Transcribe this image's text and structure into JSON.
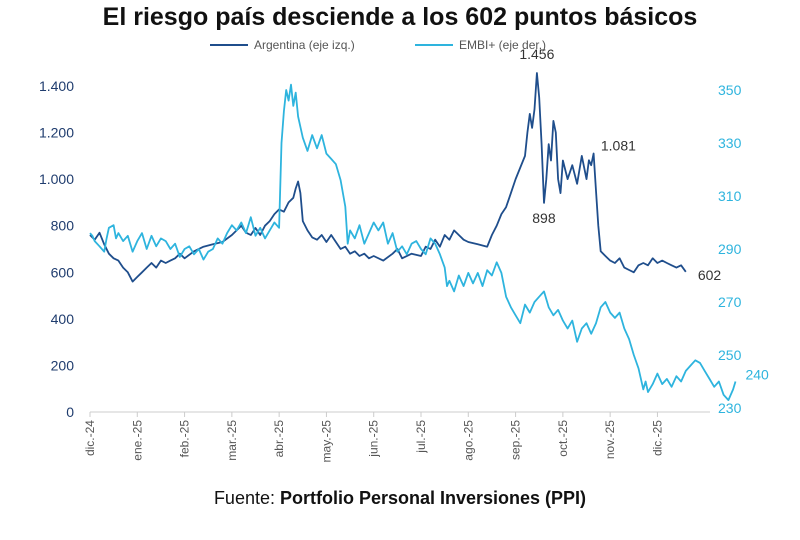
{
  "title": "El riesgo país desciende a los 602 puntos básicos",
  "source": {
    "prefix": "Fuente: ",
    "name": "Portfolio Personal Inversiones (PPI)"
  },
  "colors": {
    "argentina": "#1f4e8c",
    "embi": "#2eb4de",
    "axis": "#cccccc"
  },
  "chart_data": {
    "type": "line",
    "title": "El riesgo país desciende a los 602 puntos básicos",
    "x_ticks": [
      "dic.-24",
      "ene.-25",
      "feb.-25",
      "mar.-25",
      "abr.-25",
      "may.-25",
      "jun.-25",
      "jul.-25",
      "ago.-25",
      "sep.-25",
      "oct.-25",
      "nov.-25",
      "dic.-25"
    ],
    "y_left": {
      "label": "Argentina (eje izq.)",
      "ylim": [
        0,
        1400
      ],
      "ticks": [
        0,
        200,
        400,
        600,
        800,
        1000,
        1200,
        1400
      ],
      "tick_labels": [
        "0",
        "200",
        "400",
        "600",
        "800",
        "1.000",
        "1.200",
        "1.400"
      ]
    },
    "y_right": {
      "label": "EMBI+ (eje der.)",
      "ylim": [
        230,
        350
      ],
      "ticks": [
        230,
        250,
        270,
        290,
        310,
        330,
        350
      ],
      "tick_labels": [
        "230",
        "250",
        "270",
        "290",
        "310",
        "330",
        "350"
      ]
    },
    "series": [
      {
        "name": "Argentina (eje izq.)",
        "axis": "left",
        "points": [
          [
            0,
            760
          ],
          [
            0.1,
            740
          ],
          [
            0.2,
            770
          ],
          [
            0.3,
            720
          ],
          [
            0.4,
            680
          ],
          [
            0.5,
            660
          ],
          [
            0.6,
            650
          ],
          [
            0.7,
            620
          ],
          [
            0.8,
            600
          ],
          [
            0.9,
            560
          ],
          [
            1.0,
            580
          ],
          [
            1.1,
            600
          ],
          [
            1.2,
            620
          ],
          [
            1.3,
            640
          ],
          [
            1.4,
            620
          ],
          [
            1.5,
            650
          ],
          [
            1.6,
            640
          ],
          [
            1.7,
            650
          ],
          [
            1.8,
            660
          ],
          [
            1.9,
            680
          ],
          [
            2.0,
            660
          ],
          [
            2.2,
            690
          ],
          [
            2.4,
            710
          ],
          [
            2.6,
            720
          ],
          [
            2.8,
            730
          ],
          [
            3.0,
            760
          ],
          [
            3.1,
            780
          ],
          [
            3.2,
            800
          ],
          [
            3.3,
            770
          ],
          [
            3.4,
            760
          ],
          [
            3.5,
            790
          ],
          [
            3.6,
            760
          ],
          [
            3.7,
            800
          ],
          [
            3.8,
            820
          ],
          [
            3.9,
            850
          ],
          [
            4.0,
            870
          ],
          [
            4.1,
            860
          ],
          [
            4.2,
            900
          ],
          [
            4.3,
            920
          ],
          [
            4.35,
            960
          ],
          [
            4.4,
            990
          ],
          [
            4.45,
            940
          ],
          [
            4.5,
            820
          ],
          [
            4.6,
            780
          ],
          [
            4.7,
            750
          ],
          [
            4.8,
            740
          ],
          [
            4.9,
            760
          ],
          [
            5.0,
            730
          ],
          [
            5.1,
            760
          ],
          [
            5.2,
            730
          ],
          [
            5.3,
            700
          ],
          [
            5.4,
            710
          ],
          [
            5.5,
            680
          ],
          [
            5.6,
            690
          ],
          [
            5.7,
            670
          ],
          [
            5.8,
            680
          ],
          [
            5.9,
            660
          ],
          [
            6.0,
            670
          ],
          [
            6.2,
            650
          ],
          [
            6.4,
            680
          ],
          [
            6.5,
            700
          ],
          [
            6.6,
            660
          ],
          [
            6.8,
            680
          ],
          [
            7.0,
            670
          ],
          [
            7.1,
            710
          ],
          [
            7.2,
            700
          ],
          [
            7.3,
            740
          ],
          [
            7.4,
            710
          ],
          [
            7.5,
            760
          ],
          [
            7.6,
            740
          ],
          [
            7.7,
            780
          ],
          [
            7.8,
            760
          ],
          [
            7.9,
            740
          ],
          [
            8.0,
            730
          ],
          [
            8.2,
            720
          ],
          [
            8.4,
            710
          ],
          [
            8.5,
            760
          ],
          [
            8.6,
            800
          ],
          [
            8.7,
            850
          ],
          [
            8.8,
            880
          ],
          [
            8.9,
            940
          ],
          [
            9.0,
            1000
          ],
          [
            9.1,
            1050
          ],
          [
            9.2,
            1100
          ],
          [
            9.25,
            1200
          ],
          [
            9.3,
            1280
          ],
          [
            9.35,
            1220
          ],
          [
            9.4,
            1300
          ],
          [
            9.45,
            1456
          ],
          [
            9.5,
            1350
          ],
          [
            9.55,
            1150
          ],
          [
            9.6,
            898
          ],
          [
            9.65,
            1000
          ],
          [
            9.7,
            1150
          ],
          [
            9.75,
            1080
          ],
          [
            9.8,
            1250
          ],
          [
            9.85,
            1200
          ],
          [
            9.9,
            1000
          ],
          [
            9.95,
            940
          ],
          [
            10.0,
            1080
          ],
          [
            10.1,
            1000
          ],
          [
            10.2,
            1060
          ],
          [
            10.3,
            980
          ],
          [
            10.4,
            1100
          ],
          [
            10.5,
            1000
          ],
          [
            10.55,
            1081
          ],
          [
            10.6,
            1060
          ],
          [
            10.65,
            1110
          ],
          [
            10.7,
            950
          ],
          [
            10.75,
            800
          ],
          [
            10.8,
            690
          ],
          [
            10.9,
            670
          ],
          [
            11.0,
            650
          ],
          [
            11.1,
            640
          ],
          [
            11.2,
            660
          ],
          [
            11.3,
            620
          ],
          [
            11.4,
            610
          ],
          [
            11.5,
            600
          ],
          [
            11.6,
            630
          ],
          [
            11.7,
            640
          ],
          [
            11.8,
            630
          ],
          [
            11.9,
            660
          ],
          [
            12.0,
            640
          ],
          [
            12.1,
            650
          ],
          [
            12.2,
            640
          ],
          [
            12.3,
            630
          ],
          [
            12.4,
            620
          ],
          [
            12.5,
            630
          ],
          [
            12.6,
            602
          ]
        ]
      },
      {
        "name": "EMBI+ (eje der.)",
        "axis": "right",
        "points": [
          [
            0,
            296
          ],
          [
            0.05,
            295
          ],
          [
            0.1,
            293
          ],
          [
            0.2,
            291
          ],
          [
            0.3,
            289
          ],
          [
            0.35,
            294
          ],
          [
            0.4,
            298
          ],
          [
            0.5,
            299
          ],
          [
            0.55,
            294
          ],
          [
            0.6,
            296
          ],
          [
            0.7,
            293
          ],
          [
            0.8,
            295
          ],
          [
            0.9,
            289
          ],
          [
            1.0,
            293
          ],
          [
            1.1,
            296
          ],
          [
            1.2,
            290
          ],
          [
            1.3,
            295
          ],
          [
            1.4,
            291
          ],
          [
            1.5,
            294
          ],
          [
            1.6,
            293
          ],
          [
            1.7,
            290
          ],
          [
            1.8,
            292
          ],
          [
            1.9,
            287
          ],
          [
            2.0,
            290
          ],
          [
            2.1,
            291
          ],
          [
            2.2,
            288
          ],
          [
            2.3,
            290
          ],
          [
            2.4,
            286
          ],
          [
            2.5,
            289
          ],
          [
            2.6,
            290
          ],
          [
            2.7,
            294
          ],
          [
            2.8,
            292
          ],
          [
            2.9,
            296
          ],
          [
            3.0,
            299
          ],
          [
            3.1,
            297
          ],
          [
            3.2,
            300
          ],
          [
            3.3,
            296
          ],
          [
            3.4,
            302
          ],
          [
            3.5,
            295
          ],
          [
            3.6,
            298
          ],
          [
            3.7,
            294
          ],
          [
            3.8,
            297
          ],
          [
            3.9,
            300
          ],
          [
            4.0,
            298
          ],
          [
            4.05,
            330
          ],
          [
            4.1,
            342
          ],
          [
            4.15,
            350
          ],
          [
            4.2,
            346
          ],
          [
            4.25,
            352
          ],
          [
            4.3,
            344
          ],
          [
            4.35,
            349
          ],
          [
            4.4,
            340
          ],
          [
            4.5,
            332
          ],
          [
            4.6,
            327
          ],
          [
            4.7,
            333
          ],
          [
            4.8,
            328
          ],
          [
            4.9,
            333
          ],
          [
            5.0,
            326
          ],
          [
            5.1,
            324
          ],
          [
            5.2,
            322
          ],
          [
            5.3,
            316
          ],
          [
            5.4,
            306
          ],
          [
            5.45,
            292
          ],
          [
            5.5,
            297
          ],
          [
            5.6,
            294
          ],
          [
            5.7,
            299
          ],
          [
            5.8,
            292
          ],
          [
            5.9,
            296
          ],
          [
            6.0,
            300
          ],
          [
            6.1,
            297
          ],
          [
            6.2,
            300
          ],
          [
            6.3,
            292
          ],
          [
            6.4,
            296
          ],
          [
            6.5,
            289
          ],
          [
            6.6,
            291
          ],
          [
            6.7,
            288
          ],
          [
            6.8,
            292
          ],
          [
            6.9,
            293
          ],
          [
            7.0,
            290
          ],
          [
            7.1,
            288
          ],
          [
            7.2,
            294
          ],
          [
            7.3,
            292
          ],
          [
            7.4,
            288
          ],
          [
            7.5,
            283
          ],
          [
            7.55,
            276
          ],
          [
            7.6,
            278
          ],
          [
            7.7,
            274
          ],
          [
            7.8,
            280
          ],
          [
            7.9,
            276
          ],
          [
            8.0,
            281
          ],
          [
            8.1,
            277
          ],
          [
            8.2,
            281
          ],
          [
            8.3,
            276
          ],
          [
            8.4,
            282
          ],
          [
            8.5,
            280
          ],
          [
            8.6,
            285
          ],
          [
            8.7,
            281
          ],
          [
            8.8,
            272
          ],
          [
            8.9,
            268
          ],
          [
            9.0,
            265
          ],
          [
            9.1,
            262
          ],
          [
            9.2,
            269
          ],
          [
            9.3,
            266
          ],
          [
            9.4,
            270
          ],
          [
            9.5,
            272
          ],
          [
            9.6,
            274
          ],
          [
            9.7,
            268
          ],
          [
            9.8,
            265
          ],
          [
            9.9,
            267
          ],
          [
            10.0,
            263
          ],
          [
            10.1,
            260
          ],
          [
            10.2,
            263
          ],
          [
            10.3,
            255
          ],
          [
            10.4,
            260
          ],
          [
            10.5,
            262
          ],
          [
            10.6,
            258
          ],
          [
            10.7,
            262
          ],
          [
            10.8,
            268
          ],
          [
            10.9,
            270
          ],
          [
            11.0,
            266
          ],
          [
            11.1,
            264
          ],
          [
            11.2,
            266
          ],
          [
            11.3,
            260
          ],
          [
            11.4,
            256
          ],
          [
            11.5,
            250
          ],
          [
            11.6,
            245
          ],
          [
            11.7,
            237
          ],
          [
            11.75,
            240
          ],
          [
            11.8,
            236
          ],
          [
            11.9,
            239
          ],
          [
            12.0,
            243
          ],
          [
            12.1,
            239
          ],
          [
            12.2,
            241
          ],
          [
            12.3,
            238
          ],
          [
            12.4,
            242
          ],
          [
            12.5,
            240
          ],
          [
            12.6,
            244
          ],
          [
            12.7,
            246
          ],
          [
            12.8,
            248
          ],
          [
            12.9,
            247
          ],
          [
            13.0,
            244
          ],
          [
            13.1,
            241
          ],
          [
            13.2,
            238
          ],
          [
            13.3,
            240
          ],
          [
            13.4,
            235
          ],
          [
            13.5,
            233
          ],
          [
            13.6,
            237
          ],
          [
            13.65,
            240
          ]
        ]
      }
    ],
    "annotations": [
      {
        "label": "1.456",
        "series": "Argentina",
        "x": 9.45,
        "y": 1456
      },
      {
        "label": "898",
        "series": "Argentina",
        "x": 9.6,
        "y": 898
      },
      {
        "label": "1.081",
        "series": "Argentina",
        "x": 10.55,
        "y": 1081
      },
      {
        "label": "602",
        "series": "Argentina",
        "x": 12.6,
        "y": 602
      },
      {
        "label": "240",
        "series": "EMBI+",
        "x": 13.65,
        "y": 240
      }
    ],
    "legend": {
      "position": "top-center",
      "entries": [
        "Argentina (eje izq.)",
        "EMBI+ (eje der.)"
      ]
    },
    "grid": false
  }
}
